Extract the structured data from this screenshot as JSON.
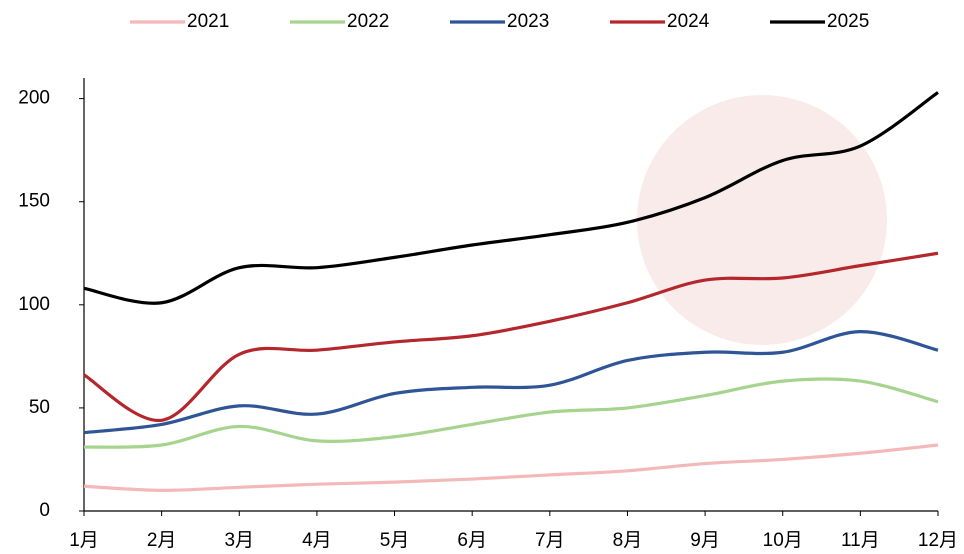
{
  "chart_data": {
    "type": "line",
    "categories": [
      "1月",
      "2月",
      "3月",
      "4月",
      "5月",
      "6月",
      "7月",
      "8月",
      "9月",
      "10月",
      "11月",
      "12月"
    ],
    "series": [
      {
        "name": "2021",
        "color": "#f4b8b8",
        "values": [
          12,
          10,
          11.5,
          13,
          14,
          15.5,
          17.5,
          19.5,
          23,
          25,
          28,
          32
        ]
      },
      {
        "name": "2022",
        "color": "#a6d38d",
        "values": [
          31,
          32,
          41,
          34,
          36,
          42,
          48,
          50,
          56,
          63,
          63,
          53
        ]
      },
      {
        "name": "2023",
        "color": "#2f5597",
        "values": [
          38,
          42,
          51,
          47,
          57,
          60,
          61,
          73,
          77,
          77,
          87,
          78
        ]
      },
      {
        "name": "2024",
        "color": "#b3272d",
        "values": [
          66,
          44,
          76,
          78,
          82,
          85,
          92,
          101,
          112,
          113,
          119,
          125
        ]
      },
      {
        "name": "2025",
        "color": "#000000",
        "values": [
          108,
          101,
          118,
          118,
          123,
          129,
          134,
          140,
          152,
          170,
          177,
          203
        ]
      }
    ],
    "ylim": [
      0,
      210
    ],
    "yticks": [
      0,
      50,
      100,
      150,
      200
    ],
    "grid": false,
    "legend": "top"
  }
}
